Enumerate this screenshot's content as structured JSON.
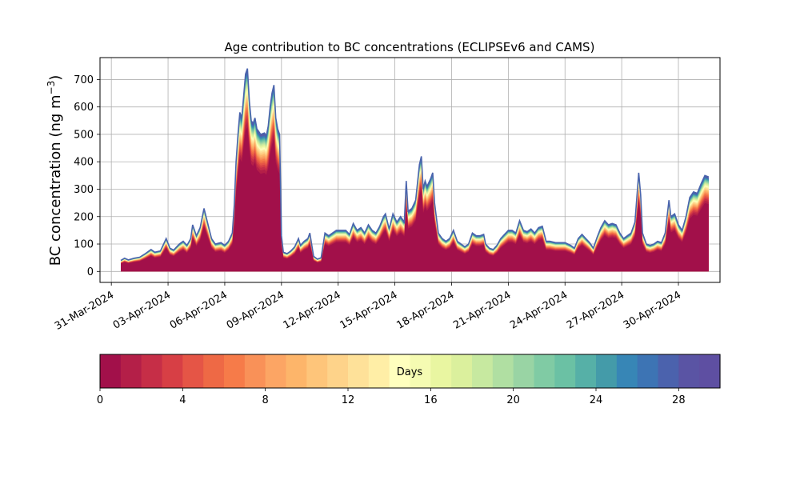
{
  "chart_data": {
    "type": "area",
    "title": "Age contribution to BC concentrations (ECLIPSEv6 and CAMS)",
    "xlabel": "",
    "ylabel": "BC concentration (ng m",
    "ylabel_sup": "−3",
    "ylabel_close": ")",
    "x_ticks": [
      "31-Mar-2024",
      "03-Apr-2024",
      "06-Apr-2024",
      "09-Apr-2024",
      "12-Apr-2024",
      "15-Apr-2024",
      "18-Apr-2024",
      "21-Apr-2024",
      "24-Apr-2024",
      "27-Apr-2024",
      "30-Apr-2024"
    ],
    "x_tick_days": [
      0,
      3,
      6,
      9,
      12,
      15,
      18,
      21,
      24,
      27,
      30
    ],
    "x_unit": "days since 31-Mar-2024",
    "xlim": [
      -0.6,
      32.2
    ],
    "y_ticks": [
      0,
      100,
      200,
      300,
      400,
      500,
      600,
      700
    ],
    "ylim": [
      -40,
      780
    ],
    "grid": true,
    "total": [
      [
        0.5,
        40
      ],
      [
        0.7,
        48
      ],
      [
        0.9,
        42
      ],
      [
        1.2,
        48
      ],
      [
        1.5,
        52
      ],
      [
        1.8,
        65
      ],
      [
        2.1,
        80
      ],
      [
        2.3,
        70
      ],
      [
        2.6,
        75
      ],
      [
        2.9,
        120
      ],
      [
        3.1,
        85
      ],
      [
        3.3,
        78
      ],
      [
        3.6,
        100
      ],
      [
        3.8,
        110
      ],
      [
        4.0,
        95
      ],
      [
        4.2,
        120
      ],
      [
        4.3,
        170
      ],
      [
        4.5,
        130
      ],
      [
        4.7,
        160
      ],
      [
        4.9,
        230
      ],
      [
        5.1,
        175
      ],
      [
        5.3,
        120
      ],
      [
        5.5,
        100
      ],
      [
        5.8,
        105
      ],
      [
        6.0,
        95
      ],
      [
        6.2,
        110
      ],
      [
        6.4,
        140
      ],
      [
        6.5,
        240
      ],
      [
        6.6,
        400
      ],
      [
        6.7,
        500
      ],
      [
        6.8,
        580
      ],
      [
        6.9,
        560
      ],
      [
        7.0,
        640
      ],
      [
        7.1,
        720
      ],
      [
        7.2,
        740
      ],
      [
        7.3,
        620
      ],
      [
        7.4,
        550
      ],
      [
        7.5,
        540
      ],
      [
        7.6,
        560
      ],
      [
        7.7,
        520
      ],
      [
        7.8,
        510
      ],
      [
        7.9,
        500
      ],
      [
        8.1,
        505
      ],
      [
        8.2,
        495
      ],
      [
        8.3,
        530
      ],
      [
        8.4,
        600
      ],
      [
        8.5,
        650
      ],
      [
        8.6,
        680
      ],
      [
        8.7,
        560
      ],
      [
        8.8,
        520
      ],
      [
        8.9,
        500
      ],
      [
        9.0,
        130
      ],
      [
        9.1,
        70
      ],
      [
        9.3,
        65
      ],
      [
        9.5,
        75
      ],
      [
        9.7,
        90
      ],
      [
        9.9,
        120
      ],
      [
        10.0,
        95
      ],
      [
        10.2,
        110
      ],
      [
        10.4,
        120
      ],
      [
        10.5,
        140
      ],
      [
        10.7,
        55
      ],
      [
        10.9,
        45
      ],
      [
        11.1,
        50
      ],
      [
        11.3,
        140
      ],
      [
        11.5,
        130
      ],
      [
        11.7,
        140
      ],
      [
        11.9,
        150
      ],
      [
        12.2,
        150
      ],
      [
        12.4,
        150
      ],
      [
        12.6,
        135
      ],
      [
        12.8,
        175
      ],
      [
        13.0,
        150
      ],
      [
        13.2,
        160
      ],
      [
        13.4,
        140
      ],
      [
        13.6,
        170
      ],
      [
        13.8,
        150
      ],
      [
        14.0,
        140
      ],
      [
        14.2,
        165
      ],
      [
        14.4,
        200
      ],
      [
        14.5,
        210
      ],
      [
        14.7,
        155
      ],
      [
        14.9,
        210
      ],
      [
        15.1,
        180
      ],
      [
        15.3,
        200
      ],
      [
        15.5,
        180
      ],
      [
        15.6,
        330
      ],
      [
        15.7,
        220
      ],
      [
        15.9,
        230
      ],
      [
        16.1,
        260
      ],
      [
        16.3,
        390
      ],
      [
        16.4,
        420
      ],
      [
        16.5,
        300
      ],
      [
        16.6,
        330
      ],
      [
        16.7,
        310
      ],
      [
        16.9,
        340
      ],
      [
        17.0,
        360
      ],
      [
        17.1,
        250
      ],
      [
        17.3,
        140
      ],
      [
        17.5,
        120
      ],
      [
        17.7,
        110
      ],
      [
        17.9,
        120
      ],
      [
        18.1,
        150
      ],
      [
        18.3,
        110
      ],
      [
        18.5,
        100
      ],
      [
        18.7,
        90
      ],
      [
        18.9,
        100
      ],
      [
        19.1,
        140
      ],
      [
        19.3,
        130
      ],
      [
        19.5,
        130
      ],
      [
        19.7,
        135
      ],
      [
        19.8,
        100
      ],
      [
        20.0,
        85
      ],
      [
        20.2,
        80
      ],
      [
        20.4,
        95
      ],
      [
        20.6,
        120
      ],
      [
        20.8,
        135
      ],
      [
        21.0,
        150
      ],
      [
        21.2,
        150
      ],
      [
        21.4,
        140
      ],
      [
        21.6,
        185
      ],
      [
        21.8,
        150
      ],
      [
        22.0,
        145
      ],
      [
        22.2,
        155
      ],
      [
        22.4,
        140
      ],
      [
        22.6,
        160
      ],
      [
        22.8,
        165
      ],
      [
        23.0,
        110
      ],
      [
        23.2,
        110
      ],
      [
        23.5,
        105
      ],
      [
        23.8,
        105
      ],
      [
        24.0,
        105
      ],
      [
        24.3,
        95
      ],
      [
        24.5,
        85
      ],
      [
        24.7,
        120
      ],
      [
        24.9,
        135
      ],
      [
        25.1,
        120
      ],
      [
        25.3,
        105
      ],
      [
        25.5,
        85
      ],
      [
        25.7,
        125
      ],
      [
        25.9,
        160
      ],
      [
        26.1,
        185
      ],
      [
        26.3,
        170
      ],
      [
        26.5,
        175
      ],
      [
        26.7,
        170
      ],
      [
        26.9,
        140
      ],
      [
        27.1,
        120
      ],
      [
        27.3,
        130
      ],
      [
        27.5,
        140
      ],
      [
        27.7,
        180
      ],
      [
        27.9,
        360
      ],
      [
        28.0,
        280
      ],
      [
        28.1,
        140
      ],
      [
        28.3,
        100
      ],
      [
        28.5,
        95
      ],
      [
        28.7,
        100
      ],
      [
        28.9,
        110
      ],
      [
        29.1,
        105
      ],
      [
        29.3,
        140
      ],
      [
        29.5,
        260
      ],
      [
        29.6,
        200
      ],
      [
        29.8,
        210
      ],
      [
        30.0,
        170
      ],
      [
        30.2,
        150
      ],
      [
        30.4,
        200
      ],
      [
        30.6,
        270
      ],
      [
        30.8,
        290
      ],
      [
        31.0,
        285
      ],
      [
        31.2,
        320
      ],
      [
        31.4,
        350
      ],
      [
        31.6,
        345
      ]
    ],
    "colorbar": {
      "label": "Days",
      "ticks": [
        0,
        4,
        8,
        12,
        16,
        20,
        24,
        28
      ],
      "range": [
        0,
        30
      ],
      "colors": [
        "#a2104a",
        "#b41f48",
        "#c62e47",
        "#d73f45",
        "#e55546",
        "#ee6945",
        "#f67b49",
        "#f99158",
        "#fca564",
        "#fdb56a",
        "#fec57a",
        "#fed38a",
        "#fee199",
        "#ffeea6",
        "#ffffbe",
        "#f5fbb2",
        "#e9f6a1",
        "#dbf09d",
        "#c7e9a0",
        "#b0dfa2",
        "#99d4a4",
        "#80cba4",
        "#6bc1a4",
        "#56b0a7",
        "#449ba9",
        "#3786b6",
        "#3d74b4",
        "#4b62ad",
        "#5a54a4",
        "#5e4fa2"
      ]
    }
  }
}
